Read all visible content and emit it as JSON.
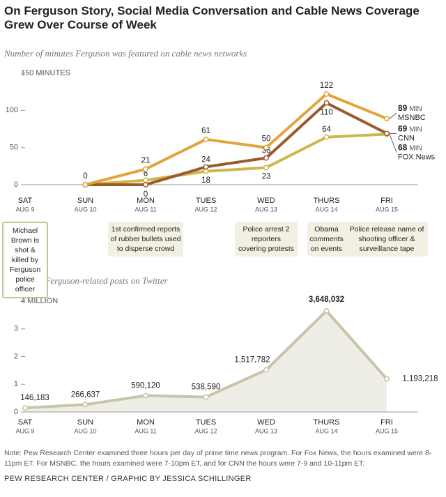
{
  "title": "On Ferguson Story, Social Media Conversation and Cable News Coverage Grew Over Course of Week",
  "chart_data": [
    {
      "type": "line",
      "subtitle": "Number of minutes Ferguson was featured on cable news networks",
      "categories": [
        "SAT",
        "SUN",
        "MON",
        "TUES",
        "WED",
        "THURS",
        "FRI"
      ],
      "dates": [
        "AUG 9",
        "AUG 10",
        "AUG 11",
        "AUG 12",
        "AUG 13",
        "AUG 14",
        "AUG 15"
      ],
      "series": [
        {
          "name": "MSNBC",
          "color": "#e3a43c",
          "values": [
            null,
            0,
            21,
            61,
            50,
            122,
            89
          ]
        },
        {
          "name": "CNN",
          "color": "#9b5a2d",
          "values": [
            null,
            0,
            0,
            24,
            36,
            110,
            69
          ]
        },
        {
          "name": "FOX News",
          "color": "#cdb74a",
          "values": [
            null,
            0,
            6,
            18,
            23,
            64,
            68
          ]
        }
      ],
      "end_unit": "MIN",
      "ylim": [
        0,
        150
      ],
      "yticks": [
        0,
        50,
        100,
        {
          "value": 150,
          "label": "150 MINUTES"
        }
      ],
      "annotations": [
        "Michael Brown is shot & killed by Ferguson police officer",
        null,
        "1st confirmed reports of rubber bullets used to disperse crowd",
        null,
        "Police arrest 2 reporters covering protests",
        "Obama comments on events",
        "Police release name of shooting officer & surveillance tape"
      ]
    },
    {
      "type": "area",
      "subtitle": "Number of Ferguson-related posts on Twitter",
      "categories": [
        "SAT",
        "SUN",
        "MON",
        "TUES",
        "WED",
        "THURS",
        "FRI"
      ],
      "dates": [
        "AUG 9",
        "AUG 10",
        "AUG 11",
        "AUG 12",
        "AUG 13",
        "AUG 14",
        "AUG 15"
      ],
      "values": [
        146183,
        266637,
        590120,
        538590,
        1517782,
        3648032,
        1193218
      ],
      "value_labels": [
        "146,183",
        "266,637",
        "590,120",
        "538,590",
        "1,517,782",
        "3,648,032",
        "1,193,218"
      ],
      "color": "#c9c3a8",
      "fill": "#efeee6",
      "ylim": [
        0,
        4000000
      ],
      "yticks": [
        0,
        {
          "value": 1000000,
          "label": "1"
        },
        {
          "value": 2000000,
          "label": "2"
        },
        {
          "value": 3000000,
          "label": "3"
        },
        {
          "value": 4000000,
          "label": "4 MILLION"
        }
      ]
    }
  ],
  "note": "Note: Pew Research Center examined three hours per day of prime time news program. For Fox News, the hours examined were 8-11pm ET. For MSNBC, the hours examined were 7-10pm ET, and for CNN the hours were 7-9 and 10-11pm ET.",
  "source": "PEW RESEARCH CENTER / GRAPHIC BY JESSICA SCHILLINGER"
}
